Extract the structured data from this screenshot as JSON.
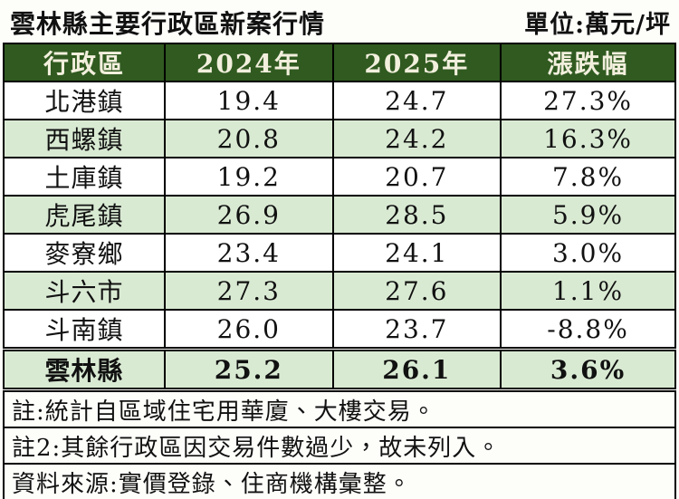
{
  "title": "雲林縣主要行政區新案行情",
  "unit_label": "單位:萬元/坪",
  "table": {
    "headers": [
      "行政區",
      "2024年",
      "2025年",
      "漲跌幅"
    ],
    "rows": [
      {
        "district": "北港鎮",
        "y2024": "19.4",
        "y2025": "24.7",
        "change": "27.3%"
      },
      {
        "district": "西螺鎮",
        "y2024": "20.8",
        "y2025": "24.2",
        "change": "16.3%"
      },
      {
        "district": "土庫鎮",
        "y2024": "19.2",
        "y2025": "20.7",
        "change": "7.8%"
      },
      {
        "district": "虎尾鎮",
        "y2024": "26.9",
        "y2025": "28.5",
        "change": "5.9%"
      },
      {
        "district": "麥寮鄉",
        "y2024": "23.4",
        "y2025": "24.1",
        "change": "3.0%"
      },
      {
        "district": "斗六市",
        "y2024": "27.3",
        "y2025": "27.6",
        "change": "1.1%"
      },
      {
        "district": "斗南鎮",
        "y2024": "26.0",
        "y2025": "23.7",
        "change": "-8.8%"
      }
    ],
    "summary": {
      "district": "雲林縣",
      "y2024": "25.2",
      "y2025": "26.1",
      "change": "3.6%"
    }
  },
  "notes": [
    "註:統計自區域住宅用華廈、大樓交易。",
    "註2:其餘行政區因交易件數過少，故未列入。",
    "資料來源:實價登錄、住商機構彙整。"
  ],
  "colors": {
    "header_bg": "#305a20",
    "header_text": "#f2efdd",
    "stripe_bg": "#d9ead3",
    "border": "#000000",
    "text": "#111111"
  },
  "chart_data": {
    "type": "table",
    "title": "雲林縣主要行政區新案行情",
    "unit": "萬元/坪",
    "columns": [
      "行政區",
      "2024年",
      "2025年",
      "漲跌幅"
    ],
    "rows": [
      [
        "北港鎮",
        19.4,
        24.7,
        "27.3%"
      ],
      [
        "西螺鎮",
        20.8,
        24.2,
        "16.3%"
      ],
      [
        "土庫鎮",
        19.2,
        20.7,
        "7.8%"
      ],
      [
        "虎尾鎮",
        26.9,
        28.5,
        "5.9%"
      ],
      [
        "麥寮鄉",
        23.4,
        24.1,
        "3.0%"
      ],
      [
        "斗六市",
        27.3,
        27.6,
        "1.1%"
      ],
      [
        "斗南鎮",
        26.0,
        23.7,
        "-8.8%"
      ],
      [
        "雲林縣",
        25.2,
        26.1,
        "3.6%"
      ]
    ],
    "notes": [
      "註:統計自區域住宅用華廈、大樓交易。",
      "註2:其餘行政區因交易件數過少，故未列入。",
      "資料來源:實價登錄、住商機構彙整。"
    ]
  }
}
